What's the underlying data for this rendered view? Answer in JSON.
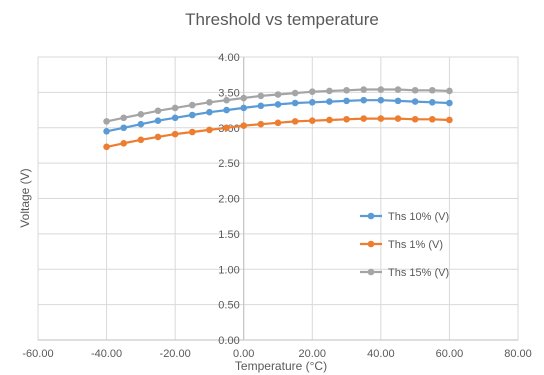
{
  "chart_data": {
    "type": "line",
    "title": "Threshold vs temperature",
    "xlabel": "Temperature (°C)",
    "ylabel": "Voltage (V)",
    "xlim": [
      -60,
      80
    ],
    "ylim": [
      0,
      4
    ],
    "x_ticks": [
      "-60.00",
      "-40.00",
      "-20.00",
      "0.00",
      "20.00",
      "40.00",
      "60.00",
      "80.00"
    ],
    "y_ticks": [
      "0.00",
      "0.50",
      "1.00",
      "1.50",
      "2.00",
      "2.50",
      "3.00",
      "3.50",
      "4.00"
    ],
    "grid": true,
    "legend_position": "right",
    "x": [
      -40,
      -35,
      -30,
      -25,
      -20,
      -15,
      -10,
      -5,
      0,
      5,
      10,
      15,
      20,
      25,
      30,
      35,
      40,
      45,
      50,
      55,
      60
    ],
    "series": [
      {
        "name": "Ths 10% (V)",
        "color": "#5B9BD5",
        "values": [
          2.95,
          3.0,
          3.05,
          3.1,
          3.14,
          3.18,
          3.22,
          3.25,
          3.28,
          3.31,
          3.33,
          3.35,
          3.36,
          3.37,
          3.38,
          3.39,
          3.39,
          3.38,
          3.37,
          3.36,
          3.35
        ]
      },
      {
        "name": "Ths 1% (V)",
        "color": "#ED7D31",
        "values": [
          2.73,
          2.78,
          2.83,
          2.87,
          2.91,
          2.94,
          2.97,
          3.0,
          3.03,
          3.05,
          3.07,
          3.09,
          3.1,
          3.11,
          3.12,
          3.13,
          3.13,
          3.13,
          3.12,
          3.12,
          3.11
        ]
      },
      {
        "name": "Ths 15% (V)",
        "color": "#A5A5A5",
        "values": [
          3.09,
          3.14,
          3.19,
          3.24,
          3.28,
          3.32,
          3.36,
          3.39,
          3.42,
          3.45,
          3.47,
          3.49,
          3.51,
          3.52,
          3.53,
          3.54,
          3.54,
          3.54,
          3.53,
          3.53,
          3.52
        ]
      }
    ]
  }
}
